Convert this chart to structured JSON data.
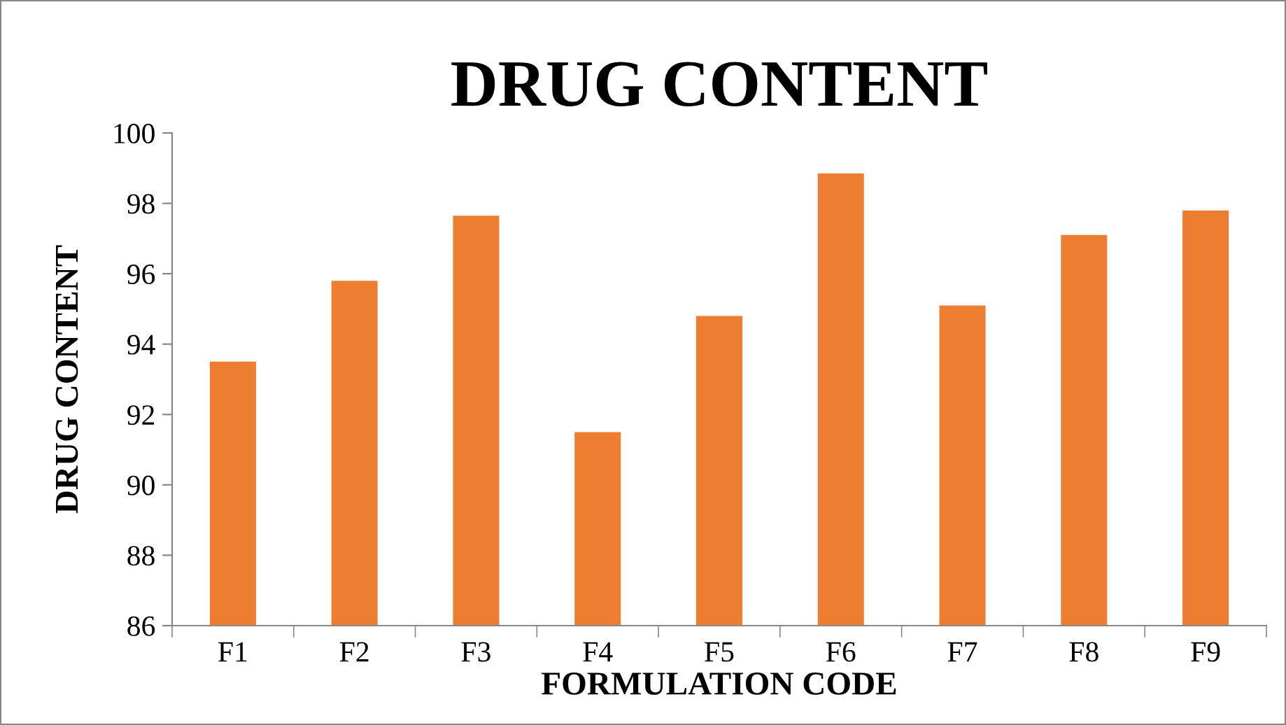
{
  "chart_data": {
    "type": "bar",
    "title": "DRUG CONTENT",
    "xlabel": "FORMULATION CODE",
    "ylabel": "DRUG CONTENT",
    "categories": [
      "F1",
      "F2",
      "F3",
      "F4",
      "F5",
      "F6",
      "F7",
      "F8",
      "F9"
    ],
    "values": [
      93.5,
      95.8,
      97.65,
      91.5,
      94.8,
      98.85,
      95.1,
      97.1,
      97.8
    ],
    "color": "#ed7d31",
    "ylim": [
      86,
      100
    ],
    "yticks": [
      86,
      88,
      90,
      92,
      94,
      96,
      98,
      100
    ],
    "grid": false,
    "legend": false
  }
}
